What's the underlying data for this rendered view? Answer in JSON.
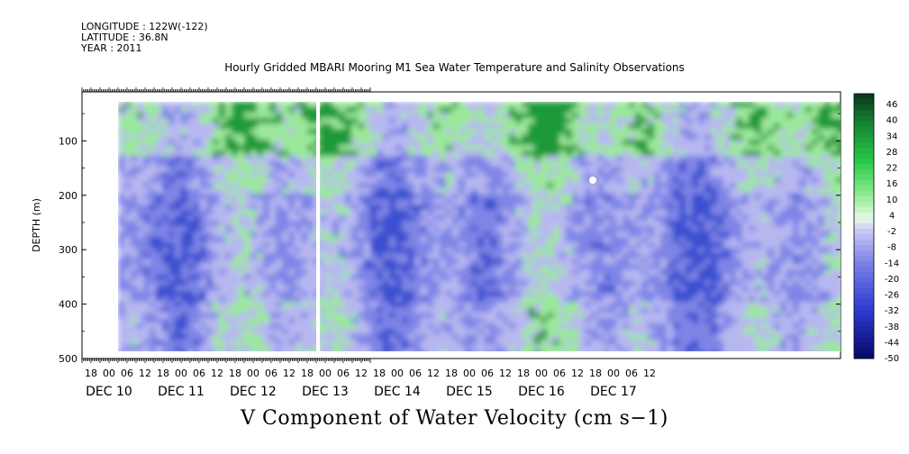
{
  "header": {
    "longitude": "LONGITUDE : 122W(-122)",
    "latitude": "LATITUDE : 36.8N",
    "year": "YEAR : 2011"
  },
  "chart_data": {
    "type": "heatmap",
    "title": "Hourly Gridded MBARI Mooring M1 Sea Water Temperature and Salinity Observations",
    "xlabel": "V Component of Water Velocity (cm s−1)",
    "ylabel": "DEPTH (m)",
    "ylim": [
      500,
      10
    ],
    "yticks": [
      100,
      200,
      300,
      400,
      500
    ],
    "hour_ticks": [
      "18",
      "00",
      "06",
      "12",
      "18",
      "00",
      "06",
      "12",
      "18",
      "00",
      "06",
      "12",
      "18",
      "00",
      "06",
      "12",
      "18",
      "00",
      "06",
      "12",
      "18",
      "00",
      "06",
      "12",
      "18",
      "00",
      "06",
      "12",
      "18",
      "00",
      "06",
      "12"
    ],
    "day_labels": [
      "DEC 10",
      "DEC 11",
      "DEC 12",
      "DEC 13",
      "DEC 14",
      "DEC 15",
      "DEC 16",
      "DEC 17"
    ],
    "colorbar": {
      "labels": [
        "46",
        "40",
        "34",
        "28",
        "22",
        "16",
        "10",
        "4",
        "-2",
        "-8",
        "-14",
        "-20",
        "-26",
        "-32",
        "-38",
        "-44",
        "-50"
      ],
      "range": [
        -50,
        48
      ]
    },
    "gaps_hours": [
      [
        150,
        152.5
      ]
    ]
  },
  "colors": {
    "green_strong": "#1f9a3a",
    "green_light": "#9be89b",
    "blue_light": "#b7b7f0",
    "blue_mid": "#7f85e6",
    "blue_dark": "#3a4fd0"
  }
}
